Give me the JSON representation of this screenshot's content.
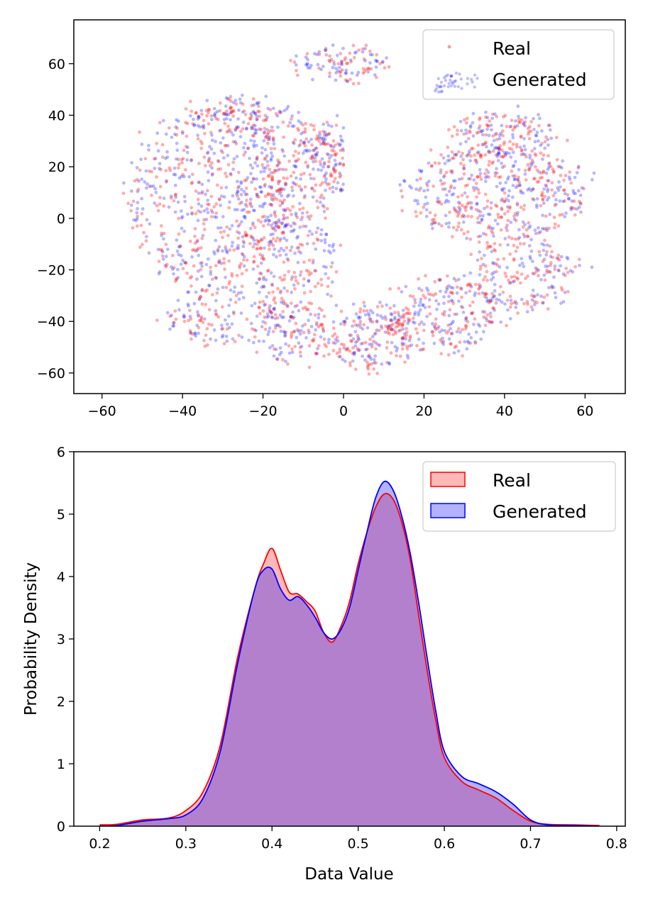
{
  "chart_data": [
    {
      "type": "scatter",
      "title": "",
      "xlabel": "",
      "ylabel": "",
      "xlim": [
        -67,
        70
      ],
      "ylim": [
        -68,
        77
      ],
      "xticks": [
        -60,
        -40,
        -20,
        0,
        20,
        40,
        60
      ],
      "yticks": [
        -60,
        -40,
        -20,
        0,
        20,
        40,
        60
      ],
      "xtick_labels": [
        "−60",
        "−40",
        "−20",
        "0",
        "20",
        "40",
        "60"
      ],
      "ytick_labels": [
        "−60",
        "−40",
        "−20",
        "0",
        "20",
        "40",
        "60"
      ],
      "legend_position": "top-right",
      "series": [
        {
          "name": "Real",
          "color": "#ff0000"
        },
        {
          "name": "Generated",
          "color": "#0000ff"
        }
      ],
      "clusters": [
        {
          "cx": -33,
          "cy": 8,
          "rx": 20,
          "ry": 36,
          "n": 600
        },
        {
          "cx": -12,
          "cy": 2,
          "rx": 13,
          "ry": 38,
          "n": 420
        },
        {
          "cx": -30,
          "cy": -38,
          "rx": 15,
          "ry": 12,
          "n": 140
        },
        {
          "cx": -12,
          "cy": -45,
          "rx": 10,
          "ry": 12,
          "n": 120
        },
        {
          "cx": 7,
          "cy": -46,
          "rx": 12,
          "ry": 13,
          "n": 200
        },
        {
          "cx": 25,
          "cy": -38,
          "rx": 15,
          "ry": 15,
          "n": 240
        },
        {
          "cx": 44,
          "cy": -22,
          "rx": 14,
          "ry": 14,
          "n": 200
        },
        {
          "cx": 38,
          "cy": 10,
          "rx": 23,
          "ry": 19,
          "n": 500
        },
        {
          "cx": 40,
          "cy": 33,
          "rx": 13,
          "ry": 9,
          "n": 150
        },
        {
          "cx": 0,
          "cy": 60,
          "rx": 12,
          "ry": 7,
          "n": 110
        },
        {
          "cx": -26,
          "cy": 40,
          "rx": 13,
          "ry": 8,
          "n": 120
        },
        {
          "cx": -4,
          "cy": 25,
          "rx": 6,
          "ry": 14,
          "n": 110
        }
      ]
    },
    {
      "type": "area",
      "title": "",
      "xlabel": "Data Value",
      "ylabel": "Probability Density",
      "xlim": [
        0.17,
        0.81
      ],
      "ylim": [
        0,
        6
      ],
      "xticks": [
        0.2,
        0.3,
        0.4,
        0.5,
        0.6,
        0.7,
        0.8
      ],
      "yticks": [
        0,
        1,
        2,
        3,
        4,
        5,
        6
      ],
      "xtick_labels": [
        "0.2",
        "0.3",
        "0.4",
        "0.5",
        "0.6",
        "0.7",
        "0.8"
      ],
      "ytick_labels": [
        "0",
        "1",
        "2",
        "3",
        "4",
        "5",
        "6"
      ],
      "legend_position": "top-right",
      "series": [
        {
          "name": "Real",
          "color": "#ff0000",
          "fill": "rgba(255,0,0,0.28)",
          "x": [
            0.2,
            0.22,
            0.25,
            0.28,
            0.3,
            0.32,
            0.34,
            0.36,
            0.38,
            0.39,
            0.4,
            0.41,
            0.42,
            0.43,
            0.44,
            0.45,
            0.46,
            0.47,
            0.48,
            0.49,
            0.5,
            0.51,
            0.52,
            0.53,
            0.54,
            0.55,
            0.56,
            0.57,
            0.58,
            0.59,
            0.6,
            0.62,
            0.64,
            0.66,
            0.68,
            0.7,
            0.72,
            0.75,
            0.78
          ],
          "y": [
            0.02,
            0.03,
            0.1,
            0.13,
            0.25,
            0.55,
            1.3,
            2.7,
            3.8,
            4.2,
            4.45,
            4.1,
            3.75,
            3.72,
            3.6,
            3.45,
            3.1,
            2.95,
            3.2,
            3.6,
            4.2,
            4.7,
            5.1,
            5.32,
            5.25,
            4.9,
            4.3,
            3.4,
            2.5,
            1.7,
            1.1,
            0.72,
            0.58,
            0.45,
            0.25,
            0.08,
            0.03,
            0.02,
            0.01
          ]
        },
        {
          "name": "Generated",
          "color": "#0000ff",
          "fill": "rgba(0,0,255,0.30)",
          "x": [
            0.2,
            0.22,
            0.25,
            0.28,
            0.3,
            0.32,
            0.34,
            0.36,
            0.38,
            0.39,
            0.4,
            0.41,
            0.42,
            0.43,
            0.44,
            0.45,
            0.46,
            0.47,
            0.48,
            0.49,
            0.5,
            0.51,
            0.52,
            0.53,
            0.54,
            0.55,
            0.56,
            0.57,
            0.58,
            0.59,
            0.6,
            0.62,
            0.64,
            0.66,
            0.68,
            0.7,
            0.72,
            0.75,
            0.78
          ],
          "y": [
            0.0,
            0.01,
            0.08,
            0.12,
            0.18,
            0.45,
            1.2,
            2.6,
            3.8,
            4.1,
            4.12,
            3.8,
            3.62,
            3.68,
            3.55,
            3.35,
            3.1,
            3.0,
            3.15,
            3.5,
            4.1,
            4.7,
            5.25,
            5.52,
            5.4,
            5.0,
            4.4,
            3.6,
            2.7,
            1.85,
            1.2,
            0.8,
            0.68,
            0.55,
            0.35,
            0.1,
            0.02,
            0.01,
            0.0
          ]
        }
      ]
    }
  ]
}
